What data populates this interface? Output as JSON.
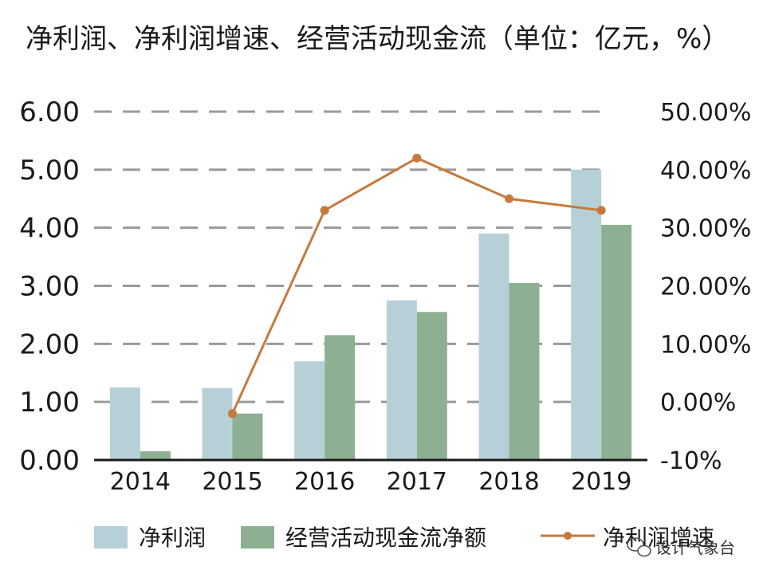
{
  "chart_data": {
    "type": "bar",
    "title": "净利润、净利润增速、经营活动现金流（单位：亿元，%）",
    "categories": [
      "2014",
      "2015",
      "2016",
      "2017",
      "2018",
      "2019"
    ],
    "ylim": [
      0,
      6
    ],
    "y_ticks": [
      "0.00",
      "1.00",
      "2.00",
      "3.00",
      "4.00",
      "5.00",
      "6.00"
    ],
    "y2lim": [
      -10,
      50
    ],
    "y2_ticks": [
      "-10%",
      "0.00%",
      "10.00%",
      "20.00%",
      "30.00%",
      "40.00%",
      "50.00%"
    ],
    "grid": true,
    "legend_position": "bottom",
    "series": [
      {
        "name": "净利润",
        "type": "bar",
        "axis": "left",
        "color": "#b7d0d8",
        "values": [
          1.25,
          1.24,
          1.7,
          2.75,
          3.9,
          5.0
        ]
      },
      {
        "name": "经营活动现金流净额",
        "type": "bar",
        "axis": "left",
        "color": "#8eb092",
        "values": [
          0.15,
          0.8,
          2.15,
          2.55,
          3.05,
          4.05
        ]
      },
      {
        "name": "净利润增速",
        "type": "line",
        "axis": "right",
        "color": "#c57a3c",
        "values": [
          null,
          -2,
          33,
          42,
          35,
          33
        ]
      }
    ]
  },
  "watermark": {
    "text": "设计气象台",
    "icon": "wechat-icon"
  }
}
